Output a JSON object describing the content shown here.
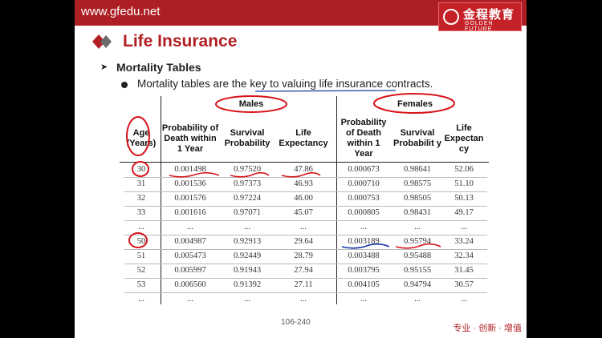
{
  "header": {
    "site": "www.gfedu.net",
    "logo_cn": "金程教育",
    "logo_en": "GOLDEN FUTURE"
  },
  "slide": {
    "title": "Life Insurance",
    "subtitle": "Mortality Tables",
    "bullet": "Mortality tables are the key to valuing life insurance contracts.",
    "page": "106-240",
    "slogan": "专业 · 创新 · 增值"
  },
  "table": {
    "group_headers": [
      "Males",
      "Females"
    ],
    "columns": [
      "Age (Years)",
      "Probability of Death within 1 Year",
      "Survival Probability",
      "Life Expectancy",
      "Probability of Death within 1 Year",
      "Survival Probabilit y",
      "Life Expectan cy"
    ],
    "rows": [
      [
        "30",
        "0.001498",
        "0.97520",
        "47.86",
        "0.000673",
        "0.98641",
        "52.06"
      ],
      [
        "31",
        "0.001536",
        "0.97373",
        "46.93",
        "0.000710",
        "0.98575",
        "51.10"
      ],
      [
        "32",
        "0.001576",
        "0.97224",
        "46.00",
        "0.000753",
        "0.98505",
        "50.13"
      ],
      [
        "33",
        "0.001616",
        "0.97071",
        "45.07",
        "0.000805",
        "0.98431",
        "49.17"
      ],
      [
        "...",
        "...",
        "...",
        "...",
        "...",
        "...",
        "..."
      ],
      [
        "50",
        "0.004987",
        "0.92913",
        "29.64",
        "0.003189",
        "0.95794",
        "33.24"
      ],
      [
        "51",
        "0.005473",
        "0.92449",
        "28.79",
        "0.003488",
        "0.95488",
        "32.34"
      ],
      [
        "52",
        "0.005997",
        "0.91943",
        "27.94",
        "0.003795",
        "0.95155",
        "31.45"
      ],
      [
        "53",
        "0.006560",
        "0.91392",
        "27.11",
        "0.004105",
        "0.94794",
        "30.57"
      ],
      [
        "...",
        "...",
        "...",
        "...",
        "...",
        "...",
        "..."
      ]
    ]
  },
  "colors": {
    "brand_red": "#ad1f24",
    "annotation_red": "#d7141a",
    "annotation_blue": "#1536a8"
  }
}
